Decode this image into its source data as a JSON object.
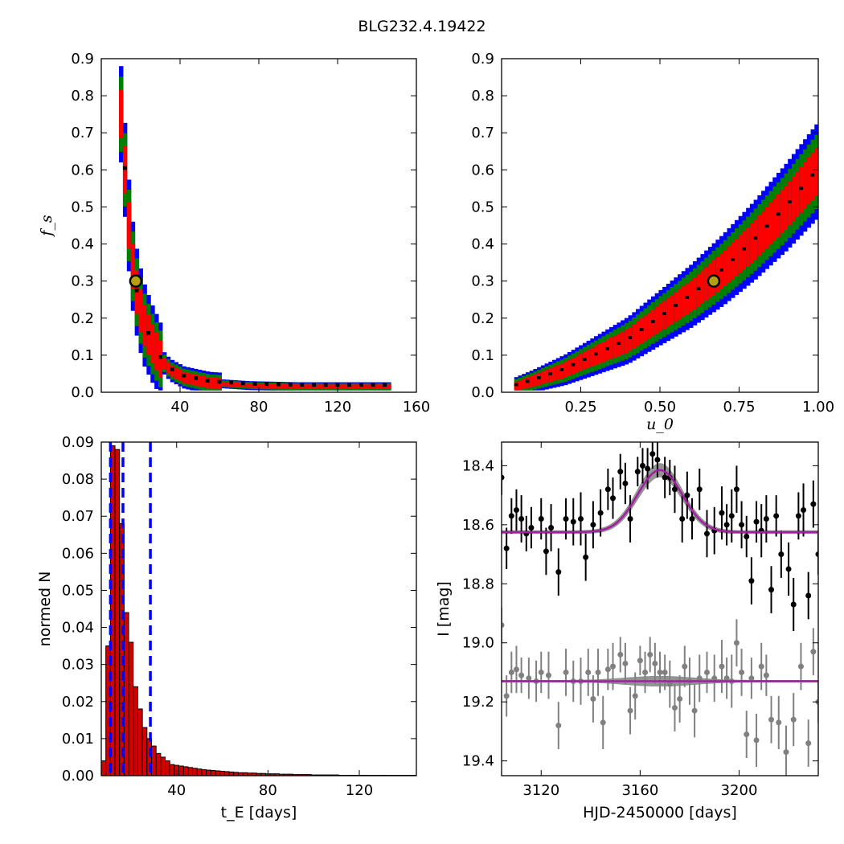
{
  "figure": {
    "title": "BLG232.4.19422"
  },
  "colors": {
    "sigma3": "#0000ff",
    "sigma2": "#008000",
    "sigma1": "#ff0000",
    "best": "#000000",
    "marker_fill": "#b5a012",
    "hist_fill": "#d40000",
    "vline": "#0000ff",
    "model": "#a020a0",
    "band": "#808080",
    "data_i": "#000000",
    "data_v": "#808080"
  },
  "chart_data": [
    {
      "id": "tE-fs",
      "type": "heatmap",
      "title": "",
      "xlabel": "",
      "ylabel": "f_s",
      "xlim": [
        0,
        160
      ],
      "ylim": [
        0,
        0.9
      ],
      "xticks": [
        "40",
        "80",
        "120",
        "160"
      ],
      "xtick_values": [
        40,
        80,
        120,
        160
      ],
      "yticks": [
        "0.0",
        "0.1",
        "0.2",
        "0.3",
        "0.4",
        "0.5",
        "0.6",
        "0.7",
        "0.8",
        "0.9"
      ],
      "ytick_values": [
        0,
        0.1,
        0.2,
        0.3,
        0.4,
        0.5,
        0.6,
        0.7,
        0.8,
        0.9
      ],
      "best_fit": {
        "x": 17.5,
        "y": 0.3
      },
      "contour_ridge": [
        [
          9,
          0.82
        ],
        [
          10,
          0.75
        ],
        [
          11,
          0.68
        ],
        [
          12,
          0.6
        ],
        [
          13,
          0.52
        ],
        [
          14,
          0.45
        ],
        [
          15,
          0.38
        ],
        [
          17,
          0.3
        ],
        [
          19,
          0.24
        ],
        [
          22,
          0.18
        ],
        [
          26,
          0.13
        ],
        [
          30,
          0.09
        ],
        [
          35,
          0.06
        ],
        [
          42,
          0.04
        ],
        [
          55,
          0.025
        ],
        [
          75,
          0.018
        ],
        [
          100,
          0.015
        ],
        [
          130,
          0.015
        ],
        [
          145,
          0.015
        ]
      ]
    },
    {
      "id": "u0-fs",
      "type": "heatmap",
      "title": "",
      "xlabel": "u_0",
      "ylabel": "",
      "xlim": [
        0,
        1.0
      ],
      "ylim": [
        0,
        0.9
      ],
      "xticks": [
        "0.25",
        "0.50",
        "0.75",
        "1.00"
      ],
      "xtick_values": [
        0.25,
        0.5,
        0.75,
        1.0
      ],
      "yticks": [
        "0.0",
        "0.1",
        "0.2",
        "0.3",
        "0.4",
        "0.5",
        "0.6",
        "0.7",
        "0.8",
        "0.9"
      ],
      "ytick_values": [
        0,
        0.1,
        0.2,
        0.3,
        0.4,
        0.5,
        0.6,
        0.7,
        0.8,
        0.9
      ],
      "best_fit": {
        "x": 0.67,
        "y": 0.3
      },
      "contour_ridge": [
        [
          0.04,
          0.015
        ],
        [
          0.1,
          0.03
        ],
        [
          0.2,
          0.06
        ],
        [
          0.3,
          0.1
        ],
        [
          0.4,
          0.14
        ],
        [
          0.5,
          0.2
        ],
        [
          0.6,
          0.26
        ],
        [
          0.7,
          0.33
        ],
        [
          0.8,
          0.41
        ],
        [
          0.9,
          0.5
        ],
        [
          1.0,
          0.6
        ]
      ]
    },
    {
      "id": "tE-hist",
      "type": "bar",
      "title": "",
      "xlabel": "t_E  [days]",
      "ylabel": "normed N",
      "xlim": [
        7,
        145
      ],
      "ylim": [
        0,
        0.09
      ],
      "xticks": [
        "40",
        "80",
        "120"
      ],
      "xtick_values": [
        40,
        80,
        120
      ],
      "yticks": [
        "0.00",
        "0.01",
        "0.02",
        "0.03",
        "0.04",
        "0.05",
        "0.06",
        "0.07",
        "0.08",
        "0.09"
      ],
      "ytick_values": [
        0,
        0.01,
        0.02,
        0.03,
        0.04,
        0.05,
        0.06,
        0.07,
        0.08,
        0.09
      ],
      "bin_start": 7,
      "bin_width": 2,
      "values": [
        0.004,
        0.035,
        0.089,
        0.088,
        0.068,
        0.044,
        0.036,
        0.024,
        0.018,
        0.013,
        0.01,
        0.008,
        0.006,
        0.005,
        0.004,
        0.003,
        0.0028,
        0.0026,
        0.0024,
        0.0022,
        0.002,
        0.0018,
        0.0016,
        0.0015,
        0.0014,
        0.0013,
        0.0012,
        0.0011,
        0.001,
        0.0009,
        0.0008,
        0.0008,
        0.0007,
        0.0007,
        0.0006,
        0.0006,
        0.0005,
        0.0005,
        0.0005,
        0.0004,
        0.0004,
        0.0004,
        0.0003,
        0.0003,
        0.0003,
        0.0003,
        0.0002,
        0.0002,
        0.0002,
        0.0002,
        0.0002,
        0.0002,
        0.0001,
        0.0001,
        0.0001,
        0.0001,
        0.0001,
        0.0001,
        0.0001,
        0.0001,
        0.0001,
        0.0001,
        0.0001,
        0.0001,
        0.0001,
        0.0001,
        0.0001,
        0.0001,
        0.0001
      ],
      "vlines": [
        11,
        16.5,
        28.5
      ]
    },
    {
      "id": "lightcurve",
      "type": "scatter",
      "title": "",
      "xlabel": "HJD-2450000 [days]",
      "ylabel": "I [mag]",
      "xlim": [
        3104,
        3232
      ],
      "ylim": [
        19.45,
        18.32
      ],
      "xticks": [
        "3120",
        "3160",
        "3200"
      ],
      "xtick_values": [
        3120,
        3160,
        3200
      ],
      "yticks": [
        "18.4",
        "18.6",
        "18.8",
        "19.0",
        "19.2",
        "19.4"
      ],
      "ytick_values": [
        18.4,
        18.6,
        18.8,
        19.0,
        19.2,
        19.4
      ],
      "model": {
        "t0": 3168,
        "baseline": 18.625,
        "amplitude": 0.21,
        "width": 9
      },
      "residual_baseline": 19.13,
      "series": [
        {
          "points": [
            [
              3104,
              18.44,
              0.06
            ],
            [
              3106,
              18.68,
              0.07
            ],
            [
              3108,
              18.57,
              0.06
            ],
            [
              3110,
              18.55,
              0.07
            ],
            [
              3112,
              18.58,
              0.08
            ],
            [
              3114,
              18.63,
              0.06
            ],
            [
              3116,
              18.61,
              0.07
            ],
            [
              3120,
              18.58,
              0.07
            ],
            [
              3122,
              18.69,
              0.08
            ],
            [
              3124,
              18.61,
              0.08
            ],
            [
              3127,
              18.76,
              0.08
            ],
            [
              3130,
              18.58,
              0.07
            ],
            [
              3133,
              18.59,
              0.08
            ],
            [
              3136,
              18.58,
              0.09
            ],
            [
              3138,
              18.71,
              0.08
            ],
            [
              3141,
              18.6,
              0.08
            ],
            [
              3144,
              18.56,
              0.08
            ],
            [
              3147,
              18.48,
              0.07
            ],
            [
              3149,
              18.51,
              0.07
            ],
            [
              3152,
              18.42,
              0.06
            ],
            [
              3154,
              18.46,
              0.07
            ],
            [
              3156,
              18.58,
              0.08
            ],
            [
              3159,
              18.42,
              0.05
            ],
            [
              3161,
              18.4,
              0.06
            ],
            [
              3163,
              18.41,
              0.07
            ],
            [
              3165,
              18.36,
              0.05
            ],
            [
              3167,
              18.38,
              0.06
            ],
            [
              3170,
              18.44,
              0.07
            ],
            [
              3172,
              18.44,
              0.06
            ],
            [
              3174,
              18.48,
              0.08
            ],
            [
              3177,
              18.58,
              0.08
            ],
            [
              3179,
              18.5,
              0.08
            ],
            [
              3181,
              18.58,
              0.07
            ],
            [
              3184,
              18.48,
              0.07
            ],
            [
              3187,
              18.63,
              0.08
            ],
            [
              3190,
              18.62,
              0.08
            ],
            [
              3193,
              18.56,
              0.09
            ],
            [
              3195,
              18.6,
              0.07
            ],
            [
              3197,
              18.57,
              0.09
            ],
            [
              3199,
              18.48,
              0.08
            ],
            [
              3201,
              18.6,
              0.08
            ],
            [
              3203,
              18.64,
              0.07
            ],
            [
              3205,
              18.79,
              0.08
            ],
            [
              3207,
              18.59,
              0.07
            ],
            [
              3209,
              18.62,
              0.09
            ],
            [
              3211,
              18.58,
              0.08
            ],
            [
              3213,
              18.82,
              0.08
            ],
            [
              3215,
              18.57,
              0.07
            ],
            [
              3217,
              18.7,
              0.08
            ],
            [
              3220,
              18.75,
              0.09
            ],
            [
              3222,
              18.87,
              0.09
            ],
            [
              3224,
              18.57,
              0.08
            ],
            [
              3226,
              18.55,
              0.09
            ],
            [
              3228,
              18.84,
              0.08
            ],
            [
              3230,
              18.53,
              0.08
            ],
            [
              3232,
              18.7,
              0.07
            ]
          ]
        },
        {
          "points": [
            [
              3104,
              18.94,
              0.06
            ],
            [
              3106,
              19.18,
              0.07
            ],
            [
              3108,
              19.1,
              0.07
            ],
            [
              3110,
              19.09,
              0.08
            ],
            [
              3112,
              19.11,
              0.06
            ],
            [
              3115,
              19.12,
              0.07
            ],
            [
              3118,
              19.13,
              0.07
            ],
            [
              3120,
              19.1,
              0.07
            ],
            [
              3123,
              19.11,
              0.08
            ],
            [
              3127,
              19.28,
              0.08
            ],
            [
              3130,
              19.1,
              0.08
            ],
            [
              3133,
              19.13,
              0.07
            ],
            [
              3136,
              19.13,
              0.08
            ],
            [
              3139,
              19.1,
              0.08
            ],
            [
              3141,
              19.19,
              0.08
            ],
            [
              3143,
              19.1,
              0.08
            ],
            [
              3145,
              19.27,
              0.09
            ],
            [
              3147,
              19.09,
              0.07
            ],
            [
              3149,
              19.08,
              0.08
            ],
            [
              3152,
              19.04,
              0.06
            ],
            [
              3154,
              19.07,
              0.07
            ],
            [
              3156,
              19.23,
              0.08
            ],
            [
              3158,
              19.18,
              0.08
            ],
            [
              3160,
              19.06,
              0.05
            ],
            [
              3162,
              19.1,
              0.07
            ],
            [
              3164,
              19.04,
              0.06
            ],
            [
              3166,
              19.07,
              0.07
            ],
            [
              3168,
              19.1,
              0.07
            ],
            [
              3170,
              19.1,
              0.06
            ],
            [
              3172,
              19.14,
              0.08
            ],
            [
              3174,
              19.22,
              0.08
            ],
            [
              3176,
              19.19,
              0.08
            ],
            [
              3178,
              19.08,
              0.07
            ],
            [
              3180,
              19.13,
              0.08
            ],
            [
              3182,
              19.23,
              0.09
            ],
            [
              3184,
              19.12,
              0.08
            ],
            [
              3187,
              19.1,
              0.07
            ],
            [
              3190,
              19.12,
              0.08
            ],
            [
              3193,
              19.08,
              0.09
            ],
            [
              3195,
              19.12,
              0.07
            ],
            [
              3197,
              19.13,
              0.09
            ],
            [
              3199,
              19.0,
              0.08
            ],
            [
              3201,
              19.1,
              0.08
            ],
            [
              3203,
              19.31,
              0.08
            ],
            [
              3205,
              19.12,
              0.07
            ],
            [
              3207,
              19.33,
              0.09
            ],
            [
              3209,
              19.08,
              0.08
            ],
            [
              3211,
              19.11,
              0.07
            ],
            [
              3213,
              19.26,
              0.08
            ],
            [
              3216,
              19.27,
              0.09
            ],
            [
              3219,
              19.37,
              0.09
            ],
            [
              3222,
              19.26,
              0.09
            ],
            [
              3225,
              19.08,
              0.08
            ],
            [
              3228,
              19.34,
              0.08
            ],
            [
              3230,
              19.03,
              0.08
            ],
            [
              3232,
              19.2,
              0.07
            ]
          ]
        }
      ]
    }
  ]
}
